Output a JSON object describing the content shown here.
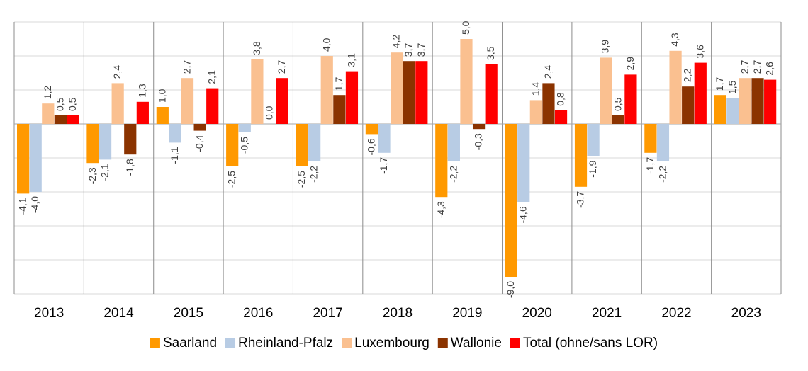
{
  "chart_data": {
    "type": "bar",
    "categories": [
      "2013",
      "2014",
      "2015",
      "2016",
      "2017",
      "2018",
      "2019",
      "2020",
      "2021",
      "2022",
      "2023"
    ],
    "series": [
      {
        "name": "Saarland",
        "color": "#ff9900",
        "values": [
          -4.1,
          -2.3,
          1.0,
          -2.5,
          -2.5,
          -0.6,
          -4.3,
          -9.0,
          -3.7,
          -1.7,
          1.7
        ]
      },
      {
        "name": "Rheinland-Pfalz",
        "color": "#b8cce4",
        "values": [
          -4.0,
          -2.1,
          -1.1,
          -0.5,
          -2.2,
          -1.7,
          -2.2,
          -4.6,
          -1.9,
          -2.2,
          1.5
        ]
      },
      {
        "name": "Luxembourg",
        "color": "#fac090",
        "values": [
          1.2,
          2.4,
          2.7,
          3.8,
          4.0,
          4.2,
          5.0,
          1.4,
          3.9,
          4.3,
          2.7
        ]
      },
      {
        "name": "Wallonie",
        "color": "#8b3300",
        "values": [
          0.5,
          -1.8,
          -0.4,
          0.0,
          1.7,
          3.7,
          -0.3,
          2.4,
          0.5,
          2.2,
          2.7
        ]
      },
      {
        "name": "Total (ohne/sans LOR)",
        "color": "#ff0000",
        "values": [
          0.5,
          1.3,
          2.1,
          2.7,
          3.1,
          3.7,
          3.5,
          0.8,
          2.9,
          3.6,
          2.6
        ]
      }
    ],
    "ylim": [
      -10,
      6
    ],
    "grid": true,
    "legend_position": "bottom",
    "data_labels": true,
    "decimal_separator": ","
  }
}
